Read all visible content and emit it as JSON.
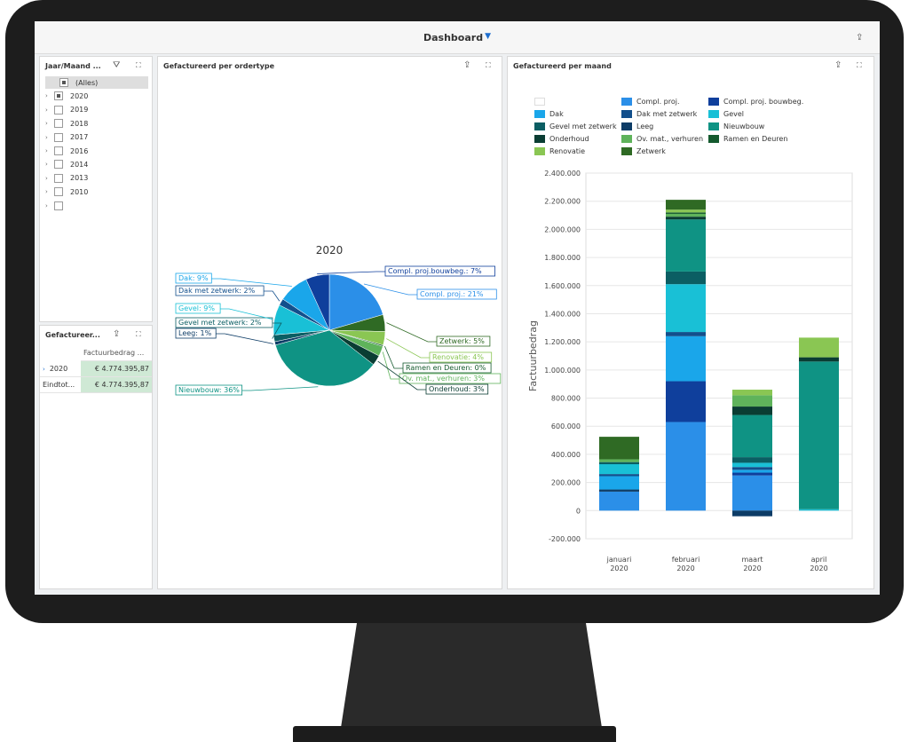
{
  "dashboard": {
    "title": "Dashboard"
  },
  "filter_panel": {
    "title": "Jaar/Maand ...",
    "items": [
      {
        "label": "(Alles)",
        "state": "partial",
        "selected": true
      },
      {
        "label": "2020",
        "state": "partial"
      },
      {
        "label": "2019",
        "state": "unchecked"
      },
      {
        "label": "2018",
        "state": "unchecked"
      },
      {
        "label": "2017",
        "state": "unchecked"
      },
      {
        "label": "2016",
        "state": "unchecked"
      },
      {
        "label": "2014",
        "state": "unchecked"
      },
      {
        "label": "2013",
        "state": "unchecked"
      },
      {
        "label": "2010",
        "state": "unchecked"
      },
      {
        "label": "",
        "state": "unchecked"
      }
    ]
  },
  "grid_panel": {
    "title": "Gefactureer...",
    "column_header": "Factuurbedrag ...",
    "rows": [
      {
        "label": "2020",
        "value": "€ 4.774.395,87"
      },
      {
        "label": "Eindtot...",
        "value": "€ 4.774.395,87"
      }
    ]
  },
  "pie_panel": {
    "title": "Gefactureerd per ordertype"
  },
  "bar_panel": {
    "title": "Gefactureerd per maand"
  },
  "colors": {
    "Compl. proj.": "#2b8fe8",
    "Compl. proj. bouwbeg.": "#0f3f9c",
    "Dak": "#1aa6ea",
    "Dak met zetwerk": "#124f8c",
    "Gevel": "#19c0d6",
    "Gevel met zetwerk": "#0b5e63",
    "Leeg": "#0d3c66",
    "Nieuwbouw": "#0f9384",
    "Onderhoud": "#0a3d33",
    "Ov. mat., verhuren": "#5fb35b",
    "Ramen en Deuren": "#145a2e",
    "Renovatie": "#8ac653",
    "Zetwerk": "#2f6a24"
  },
  "chart_data": [
    {
      "type": "pie",
      "title": "2020",
      "slices": [
        {
          "name": "Compl. proj.",
          "label": "Compl. proj.: 21%",
          "value": 21
        },
        {
          "name": "Zetwerk",
          "label": "Zetwerk: 5%",
          "value": 5
        },
        {
          "name": "Renovatie",
          "label": "Renovatie: 4%",
          "value": 4
        },
        {
          "name": "Ramen en Deuren",
          "label": "Ramen en Deuren: 0%",
          "value": 0.4
        },
        {
          "name": "Ov. mat., verhuren",
          "label": "Ov. mat., verhuren: 3%",
          "value": 3
        },
        {
          "name": "Onderhoud",
          "label": "Onderhoud: 3%",
          "value": 3
        },
        {
          "name": "Nieuwbouw",
          "label": "Nieuwbouw: 36%",
          "value": 36
        },
        {
          "name": "Leeg",
          "label": "Leeg: 1%",
          "value": 1
        },
        {
          "name": "Gevel met zetwerk",
          "label": "Gevel met zetwerk: 2%",
          "value": 2
        },
        {
          "name": "Gevel",
          "label": "Gevel: 9%",
          "value": 9
        },
        {
          "name": "Dak met zetwerk",
          "label": "Dak met zetwerk: 2%",
          "value": 2
        },
        {
          "name": "Dak",
          "label": "Dak: 9%",
          "value": 9
        },
        {
          "name": "Compl. proj. bouwbeg.",
          "label": "Compl. proj.bouwbeg.: 7%",
          "value": 7
        }
      ]
    },
    {
      "type": "bar",
      "stacked": true,
      "ylabel": "Factuurbedrag",
      "ylim": [
        -200000,
        2400000
      ],
      "yticks": [
        {
          "value": -200000,
          "label": "-200.000"
        },
        {
          "value": 0,
          "label": "0"
        },
        {
          "value": 200000,
          "label": "200.000"
        },
        {
          "value": 400000,
          "label": "400.000"
        },
        {
          "value": 600000,
          "label": "600.000"
        },
        {
          "value": 800000,
          "label": "800.000"
        },
        {
          "value": 1000000,
          "label": "1.000.000"
        },
        {
          "value": 1200000,
          "label": "1.200.000"
        },
        {
          "value": 1400000,
          "label": "1.400.000"
        },
        {
          "value": 1600000,
          "label": "1.600.000"
        },
        {
          "value": 1800000,
          "label": "1.800.000"
        },
        {
          "value": 2000000,
          "label": "2.000.000"
        },
        {
          "value": 2200000,
          "label": "2.200.000"
        },
        {
          "value": 2400000,
          "label": "2.400.000"
        }
      ],
      "categories": [
        {
          "month": "januari",
          "year": "2020"
        },
        {
          "month": "februari",
          "year": "2020"
        },
        {
          "month": "maart",
          "year": "2020"
        },
        {
          "month": "april",
          "year": "2020"
        }
      ],
      "legend": [
        "",
        "Compl. proj.",
        "Compl. proj. bouwbeg.",
        "Dak",
        "Dak met zetwerk",
        "Gevel",
        "Gevel met zetwerk",
        "Leeg",
        "Nieuwbouw",
        "Onderhoud",
        "Ov. mat., verhuren",
        "Ramen en Deuren",
        "Renovatie",
        "Zetwerk"
      ],
      "series": [
        {
          "name": "Compl. proj.",
          "values": [
            135000,
            630000,
            250000,
            0
          ]
        },
        {
          "name": "Leeg",
          "values": [
            15000,
            0,
            0,
            0
          ]
        },
        {
          "name": "Compl. proj. bouwbeg.",
          "values": [
            0,
            290000,
            20000,
            0
          ]
        },
        {
          "name": "Dak",
          "values": [
            95000,
            320000,
            20000,
            0
          ]
        },
        {
          "name": "Dak met zetwerk",
          "values": [
            15000,
            30000,
            20000,
            0
          ]
        },
        {
          "name": "Gevel",
          "values": [
            70000,
            340000,
            30000,
            10000
          ]
        },
        {
          "name": "Gevel met zetwerk",
          "values": [
            15000,
            90000,
            40000,
            0
          ]
        },
        {
          "name": "Nieuwbouw",
          "values": [
            0,
            370000,
            300000,
            1050000
          ]
        },
        {
          "name": "Onderhoud",
          "values": [
            0,
            20000,
            60000,
            30000
          ]
        },
        {
          "name": "Ov. mat., verhuren",
          "values": [
            20000,
            20000,
            80000,
            0
          ]
        },
        {
          "name": "Ramen en Deuren",
          "values": [
            0,
            10000,
            0,
            0
          ]
        },
        {
          "name": "Renovatie",
          "values": [
            0,
            20000,
            40000,
            140000
          ]
        },
        {
          "name": "Zetwerk",
          "values": [
            160000,
            70000,
            0,
            0
          ]
        },
        {
          "name": "Leeg",
          "values": [
            0,
            0,
            -40000,
            0
          ]
        }
      ]
    }
  ]
}
